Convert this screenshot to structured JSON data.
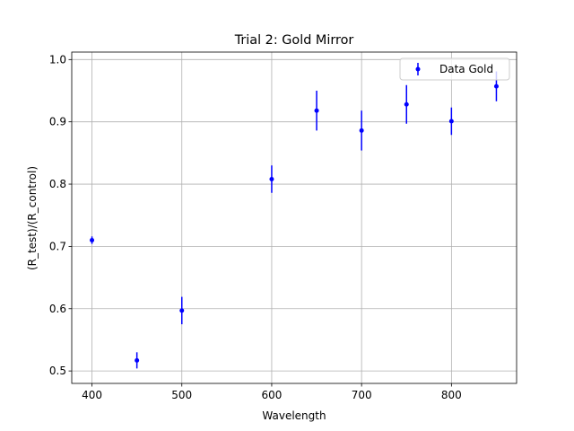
{
  "chart_data": {
    "type": "errorbar",
    "title": "Trial 2: Gold Mirror",
    "x_label": "Wavelength",
    "y_label": "(R_test)/(R_control)",
    "series": [
      {
        "name": "Data Gold",
        "color": "#0000ff",
        "x": [
          400,
          450,
          500,
          600,
          650,
          700,
          750,
          800,
          850
        ],
        "values": [
          0.71,
          0.517,
          0.597,
          0.808,
          0.918,
          0.886,
          0.928,
          0.901,
          0.957
        ],
        "errors": [
          0.006,
          0.013,
          0.022,
          0.022,
          0.032,
          0.032,
          0.031,
          0.022,
          0.024
        ]
      }
    ],
    "xlim": [
      377.5,
      872.5
    ],
    "xticks": [
      400,
      500,
      600,
      700,
      800
    ],
    "ylim": [
      0.48,
      1.012
    ],
    "yticks": [
      0.5,
      0.6,
      0.7,
      0.8,
      0.9,
      {
        "value": 1,
        "label": "1.0"
      }
    ],
    "grid": true,
    "legend": "upper right"
  }
}
